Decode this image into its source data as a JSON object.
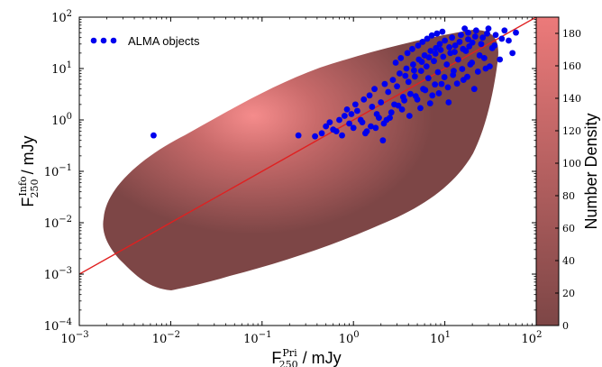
{
  "chart_data": {
    "type": "scatter",
    "x_scale": "log",
    "y_scale": "log",
    "xlim": [
      0.001,
      100
    ],
    "ylim": [
      0.0001,
      100
    ],
    "x_tick_labels": [
      {
        "base": "10",
        "exp": "−3",
        "value": 0.001
      },
      {
        "base": "10",
        "exp": "−2",
        "value": 0.01
      },
      {
        "base": "10",
        "exp": "−1",
        "value": 0.1
      },
      {
        "base": "10",
        "exp": "0",
        "value": 1
      },
      {
        "base": "10",
        "exp": "1",
        "value": 10
      },
      {
        "base": "10",
        "exp": "2",
        "value": 100
      }
    ],
    "y_tick_labels": [
      {
        "base": "10",
        "exp": "−4",
        "value": 0.0001
      },
      {
        "base": "10",
        "exp": "−3",
        "value": 0.001
      },
      {
        "base": "10",
        "exp": "−2",
        "value": 0.01
      },
      {
        "base": "10",
        "exp": "−1",
        "value": 0.1
      },
      {
        "base": "10",
        "exp": "0",
        "value": 1
      },
      {
        "base": "10",
        "exp": "1",
        "value": 10
      },
      {
        "base": "10",
        "exp": "2",
        "value": 100
      }
    ],
    "xlabel": {
      "main": "F",
      "sup": "Pri",
      "sub": "250",
      "unit": " / mJy"
    },
    "ylabel": {
      "main": "F",
      "sup": "Info",
      "sub": "250",
      "unit": " / mJy"
    },
    "legend": {
      "label": "ALMA objects",
      "placement": "upper-left",
      "color": "#0000ee"
    },
    "colorbar": {
      "label": "Number Density",
      "range": [
        0,
        190
      ],
      "ticks": [
        "0",
        "20",
        "40",
        "60",
        "80",
        "100",
        "120",
        "140",
        "160",
        "180"
      ],
      "color_low": "#7d4646",
      "color_high": "#ec7a7a"
    },
    "density_region": {
      "description_only": false,
      "color_low": "#7d4646",
      "color_high": "#f58c8c",
      "peak": {
        "x": 0.03,
        "y": 0.3
      }
    },
    "reference_line": {
      "type": "one-to-one",
      "color": "#e02020",
      "x": [
        0.001,
        100
      ],
      "y": [
        0.001,
        100
      ]
    },
    "series": [
      {
        "name": "ALMA objects",
        "color": "#0000ee",
        "points": [
          [
            0.0065,
            0.5
          ],
          [
            0.25,
            0.5
          ],
          [
            0.38,
            0.48
          ],
          [
            0.45,
            0.55
          ],
          [
            0.5,
            0.75
          ],
          [
            0.55,
            0.9
          ],
          [
            0.6,
            0.65
          ],
          [
            0.7,
            1.0
          ],
          [
            0.75,
            0.5
          ],
          [
            0.8,
            1.2
          ],
          [
            0.9,
            0.85
          ],
          [
            1.0,
            0.7
          ],
          [
            1.1,
            1.5
          ],
          [
            1.2,
            1.0
          ],
          [
            1.3,
            2.5
          ],
          [
            1.4,
            0.6
          ],
          [
            1.5,
            3.0
          ],
          [
            1.6,
            1.8
          ],
          [
            1.7,
            4.0
          ],
          [
            1.8,
            1.3
          ],
          [
            2.0,
            2.2
          ],
          [
            2.1,
            0.4
          ],
          [
            2.2,
            5.0
          ],
          [
            2.4,
            3.5
          ],
          [
            2.5,
            1.1
          ],
          [
            2.7,
            6.0
          ],
          [
            2.8,
            2.0
          ],
          [
            3.0,
            4.5
          ],
          [
            3.2,
            8.0
          ],
          [
            3.4,
            1.6
          ],
          [
            3.5,
            2.8
          ],
          [
            3.8,
            10.0
          ],
          [
            4.0,
            5.5
          ],
          [
            4.2,
            3.2
          ],
          [
            4.5,
            12.0
          ],
          [
            4.7,
            7.0
          ],
          [
            5.0,
            2.5
          ],
          [
            5.2,
            15.0
          ],
          [
            5.5,
            9.0
          ],
          [
            5.8,
            4.0
          ],
          [
            6.0,
            18.0
          ],
          [
            6.3,
            11.0
          ],
          [
            6.6,
            6.5
          ],
          [
            7.0,
            22.0
          ],
          [
            7.3,
            3.0
          ],
          [
            7.6,
            14.0
          ],
          [
            8.0,
            25.0
          ],
          [
            8.4,
            8.5
          ],
          [
            8.8,
            30.0
          ],
          [
            9.2,
            5.0
          ],
          [
            9.6,
            17.0
          ],
          [
            10.0,
            35.0
          ],
          [
            10.5,
            12.0
          ],
          [
            11.0,
            2.2
          ],
          [
            11.5,
            20.0
          ],
          [
            12.0,
            40.0
          ],
          [
            12.5,
            9.0
          ],
          [
            13.0,
            28.0
          ],
          [
            14.0,
            15.0
          ],
          [
            15.0,
            45.0
          ],
          [
            16.0,
            6.0
          ],
          [
            17.0,
            22.0
          ],
          [
            18.0,
            50.0
          ],
          [
            19.0,
            12.0
          ],
          [
            20.0,
            32.0
          ],
          [
            21.0,
            4.0
          ],
          [
            22.0,
            55.0
          ],
          [
            24.0,
            18.0
          ],
          [
            26.0,
            40.0
          ],
          [
            28.0,
            10.0
          ],
          [
            30.0,
            60.0
          ],
          [
            33.0,
            25.0
          ],
          [
            36.0,
            45.0
          ],
          [
            40.0,
            15.0
          ],
          [
            45.0,
            55.0
          ],
          [
            50.0,
            35.0
          ],
          [
            55.0,
            20.0
          ],
          [
            60.0,
            50.0
          ],
          [
            2.3,
            1.0
          ],
          [
            2.6,
            1.4
          ],
          [
            3.1,
            1.9
          ],
          [
            3.6,
            2.4
          ],
          [
            4.1,
            1.2
          ],
          [
            4.8,
            2.9
          ],
          [
            5.4,
            1.7
          ],
          [
            6.1,
            3.8
          ],
          [
            6.9,
            2.1
          ],
          [
            7.8,
            4.9
          ],
          [
            8.6,
            3.3
          ],
          [
            9.9,
            6.8
          ],
          [
            10.8,
            4.3
          ],
          [
            12.3,
            7.5
          ],
          [
            13.6,
            5.1
          ],
          [
            15.5,
            9.8
          ],
          [
            17.6,
            6.9
          ],
          [
            19.8,
            13.0
          ],
          [
            23.0,
            8.7
          ],
          [
            27.0,
            16.0
          ],
          [
            31.0,
            11.0
          ],
          [
            1.25,
            0.9
          ],
          [
            1.55,
            0.75
          ],
          [
            1.9,
            1.1
          ],
          [
            0.95,
            1.3
          ],
          [
            1.05,
            2.0
          ],
          [
            2.9,
            13.0
          ],
          [
            3.3,
            16.0
          ],
          [
            3.9,
            20.0
          ],
          [
            4.4,
            24.0
          ],
          [
            5.1,
            28.0
          ],
          [
            5.7,
            33.0
          ],
          [
            6.4,
            38.0
          ],
          [
            7.2,
            44.0
          ],
          [
            8.2,
            48.0
          ],
          [
            9.4,
            52.0
          ],
          [
            14.5,
            33.0
          ],
          [
            16.5,
            60.0
          ],
          [
            18.5,
            27.0
          ],
          [
            21.5,
            42.0
          ],
          [
            25.0,
            30.0
          ],
          [
            29.0,
            48.0
          ],
          [
            35.0,
            28.0
          ],
          [
            42.0,
            38.0
          ],
          [
            1.35,
            0.55
          ],
          [
            1.75,
            0.7
          ],
          [
            2.15,
            0.85
          ],
          [
            0.65,
            0.6
          ],
          [
            0.85,
            1.6
          ],
          [
            3.7,
            7.2
          ],
          [
            4.6,
            9.2
          ],
          [
            5.6,
            13.5
          ],
          [
            6.7,
            16.5
          ],
          [
            7.9,
            19.5
          ],
          [
            9.0,
            23.0
          ],
          [
            11.2,
            26.0
          ],
          [
            12.8,
            21.0
          ],
          [
            15.8,
            24.0
          ],
          [
            18.0,
            37.0
          ]
        ]
      }
    ]
  }
}
